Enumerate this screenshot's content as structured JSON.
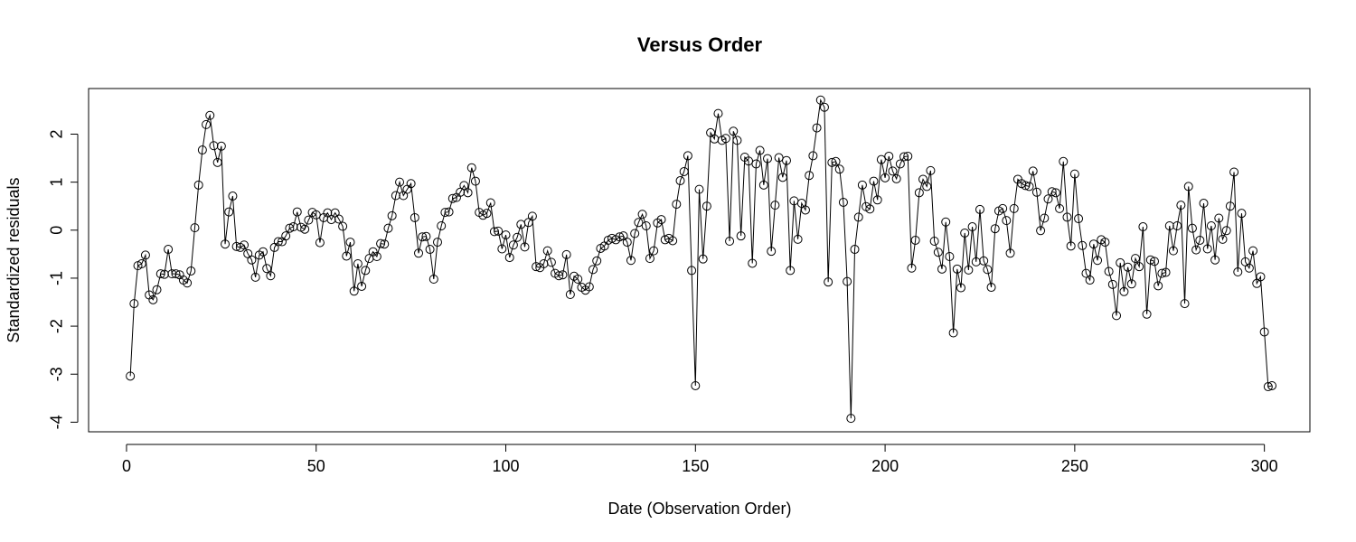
{
  "chart_data": {
    "type": "line",
    "title": "Versus Order",
    "xlabel": "Date (Observation Order)",
    "ylabel": "Standardized residuals",
    "xlim": [
      -10,
      312
    ],
    "ylim": [
      -4.2,
      2.95
    ],
    "x_ticks": [
      0,
      50,
      100,
      150,
      200,
      250,
      300
    ],
    "y_ticks": [
      -4,
      -3,
      -2,
      -1,
      0,
      1,
      2
    ],
    "grid": false,
    "markers": "open-circle",
    "series": [
      {
        "values": [
          -3.04,
          -1.53,
          -0.74,
          -0.7,
          -0.52,
          -1.35,
          -1.45,
          -1.24,
          -0.91,
          -0.92,
          -0.4,
          -0.91,
          -0.91,
          -0.93,
          -1.04,
          -1.1,
          -0.85,
          0.05,
          0.94,
          1.67,
          2.2,
          2.39,
          1.76,
          1.41,
          1.75,
          -0.29,
          0.38,
          0.71,
          -0.34,
          -0.36,
          -0.31,
          -0.49,
          -0.62,
          -0.98,
          -0.52,
          -0.45,
          -0.8,
          -0.95,
          -0.36,
          -0.24,
          -0.24,
          -0.12,
          0.04,
          0.07,
          0.38,
          0.06,
          0.02,
          0.21,
          0.37,
          0.32,
          -0.26,
          0.26,
          0.36,
          0.22,
          0.36,
          0.23,
          0.08,
          -0.54,
          -0.25,
          -1.27,
          -0.7,
          -1.17,
          -0.84,
          -0.59,
          -0.45,
          -0.55,
          -0.28,
          -0.29,
          0.04,
          0.3,
          0.72,
          1.0,
          0.72,
          0.85,
          0.97,
          0.26,
          -0.48,
          -0.14,
          -0.13,
          -0.4,
          -1.02,
          -0.25,
          0.09,
          0.37,
          0.38,
          0.66,
          0.68,
          0.79,
          0.93,
          0.78,
          1.3,
          1.02,
          0.37,
          0.31,
          0.35,
          0.57,
          -0.03,
          -0.02,
          -0.39,
          -0.1,
          -0.57,
          -0.31,
          -0.15,
          0.12,
          -0.35,
          0.16,
          0.29,
          -0.76,
          -0.78,
          -0.7,
          -0.43,
          -0.67,
          -0.9,
          -0.95,
          -0.93,
          -0.51,
          -1.34,
          -0.96,
          -1.02,
          -1.19,
          -1.25,
          -1.18,
          -0.82,
          -0.64,
          -0.38,
          -0.33,
          -0.21,
          -0.17,
          -0.2,
          -0.14,
          -0.12,
          -0.25,
          -0.63,
          -0.07,
          0.16,
          0.33,
          0.09,
          -0.59,
          -0.43,
          0.15,
          0.22,
          -0.2,
          -0.17,
          -0.22,
          0.54,
          1.03,
          1.22,
          1.55,
          -0.84,
          -3.24,
          0.85,
          -0.6,
          0.5,
          2.03,
          1.9,
          2.43,
          1.87,
          1.91,
          -0.23,
          2.06,
          1.87,
          -0.12,
          1.52,
          1.44,
          -0.69,
          1.38,
          1.66,
          0.94,
          1.49,
          -0.44,
          0.52,
          1.51,
          1.1,
          1.45,
          -0.84,
          0.61,
          -0.19,
          0.56,
          0.42,
          1.14,
          1.55,
          2.13,
          2.71,
          2.56,
          -1.08,
          1.41,
          1.43,
          1.27,
          0.58,
          -1.07,
          -3.92,
          -0.4,
          0.27,
          0.94,
          0.49,
          0.44,
          1.02,
          0.63,
          1.47,
          1.09,
          1.54,
          1.23,
          1.07,
          1.38,
          1.53,
          1.54,
          -0.79,
          -0.21,
          0.78,
          1.06,
          0.91,
          1.24,
          -0.23,
          -0.46,
          -0.81,
          0.17,
          -0.55,
          -2.14,
          -0.81,
          -1.2,
          -0.06,
          -0.83,
          0.07,
          -0.66,
          0.43,
          -0.64,
          -0.82,
          -1.19,
          0.03,
          0.4,
          0.45,
          0.2,
          -0.48,
          0.45,
          1.06,
          0.97,
          0.93,
          0.91,
          1.23,
          0.79,
          -0.01,
          0.25,
          0.65,
          0.8,
          0.78,
          0.45,
          1.43,
          0.27,
          -0.33,
          1.17,
          0.24,
          -0.32,
          -0.9,
          -1.04,
          -0.29,
          -0.63,
          -0.2,
          -0.25,
          -0.86,
          -1.13,
          -1.78,
          -0.68,
          -1.28,
          -0.77,
          -1.12,
          -0.59,
          -0.76,
          0.07,
          -1.75,
          -0.62,
          -0.65,
          -1.16,
          -0.9,
          -0.88,
          0.09,
          -0.43,
          0.09,
          0.52,
          -1.53,
          0.91,
          0.04,
          -0.41,
          -0.21,
          0.56,
          -0.39,
          0.09,
          -0.62,
          0.25,
          -0.19,
          -0.01,
          0.5,
          1.21,
          -0.87,
          0.35,
          -0.66,
          -0.79,
          -0.43,
          -1.11,
          -0.97,
          -2.12,
          -3.26,
          -3.24
        ]
      }
    ]
  }
}
